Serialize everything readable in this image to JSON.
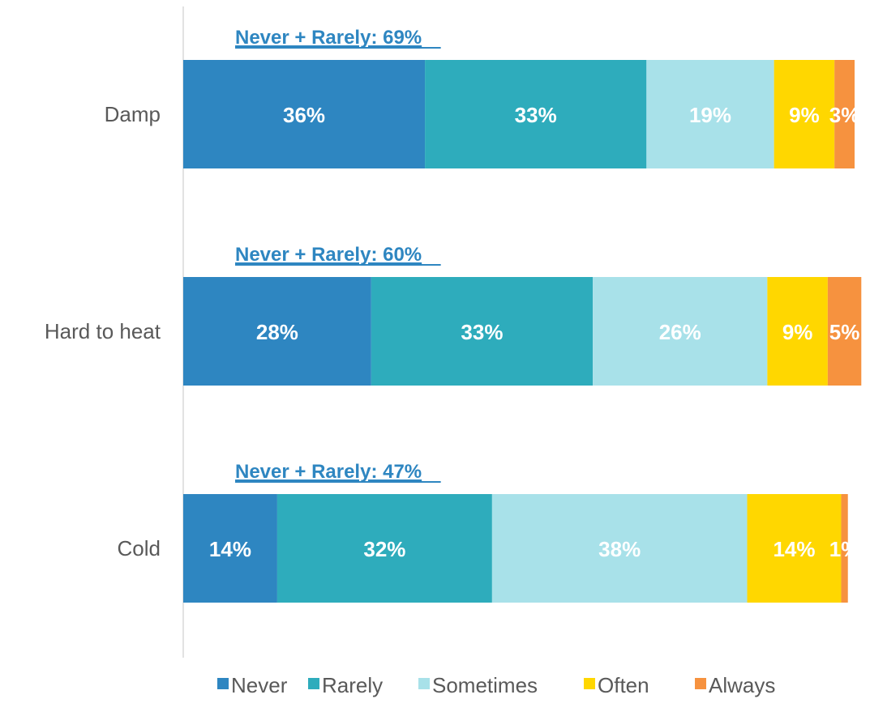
{
  "chart_data": {
    "type": "bar",
    "orientation": "horizontal",
    "stacked": true,
    "title": "",
    "xlabel": "",
    "ylabel": "",
    "xlim": [
      0,
      100
    ],
    "grid": false,
    "legend_position": "bottom",
    "categories": [
      "Damp",
      "Hard to heat",
      "Cold"
    ],
    "series": [
      {
        "name": "Never",
        "color": "#2e86c1",
        "values": [
          36,
          28,
          14
        ],
        "labels": [
          "36%",
          "28%",
          "14%"
        ]
      },
      {
        "name": "Rarely",
        "color": "#2eacbc",
        "values": [
          33,
          33,
          32
        ],
        "labels": [
          "33%",
          "33%",
          "32%"
        ]
      },
      {
        "name": "Sometimes",
        "color": "#a8e1e9",
        "values": [
          19,
          26,
          38
        ],
        "labels": [
          "19%",
          "26%",
          "38%"
        ]
      },
      {
        "name": "Often",
        "color": "#ffd700",
        "values": [
          9,
          9,
          14
        ],
        "labels": [
          "9%",
          "9%",
          "14%"
        ]
      },
      {
        "name": "Always",
        "color": "#f6923f",
        "values": [
          3,
          5,
          1
        ],
        "labels": [
          "3%",
          "5%",
          "1%"
        ]
      }
    ],
    "annotations": [
      "Never + Rarely: 69%",
      "Never + Rarely: 60%",
      "Never + Rarely: 47%"
    ]
  }
}
